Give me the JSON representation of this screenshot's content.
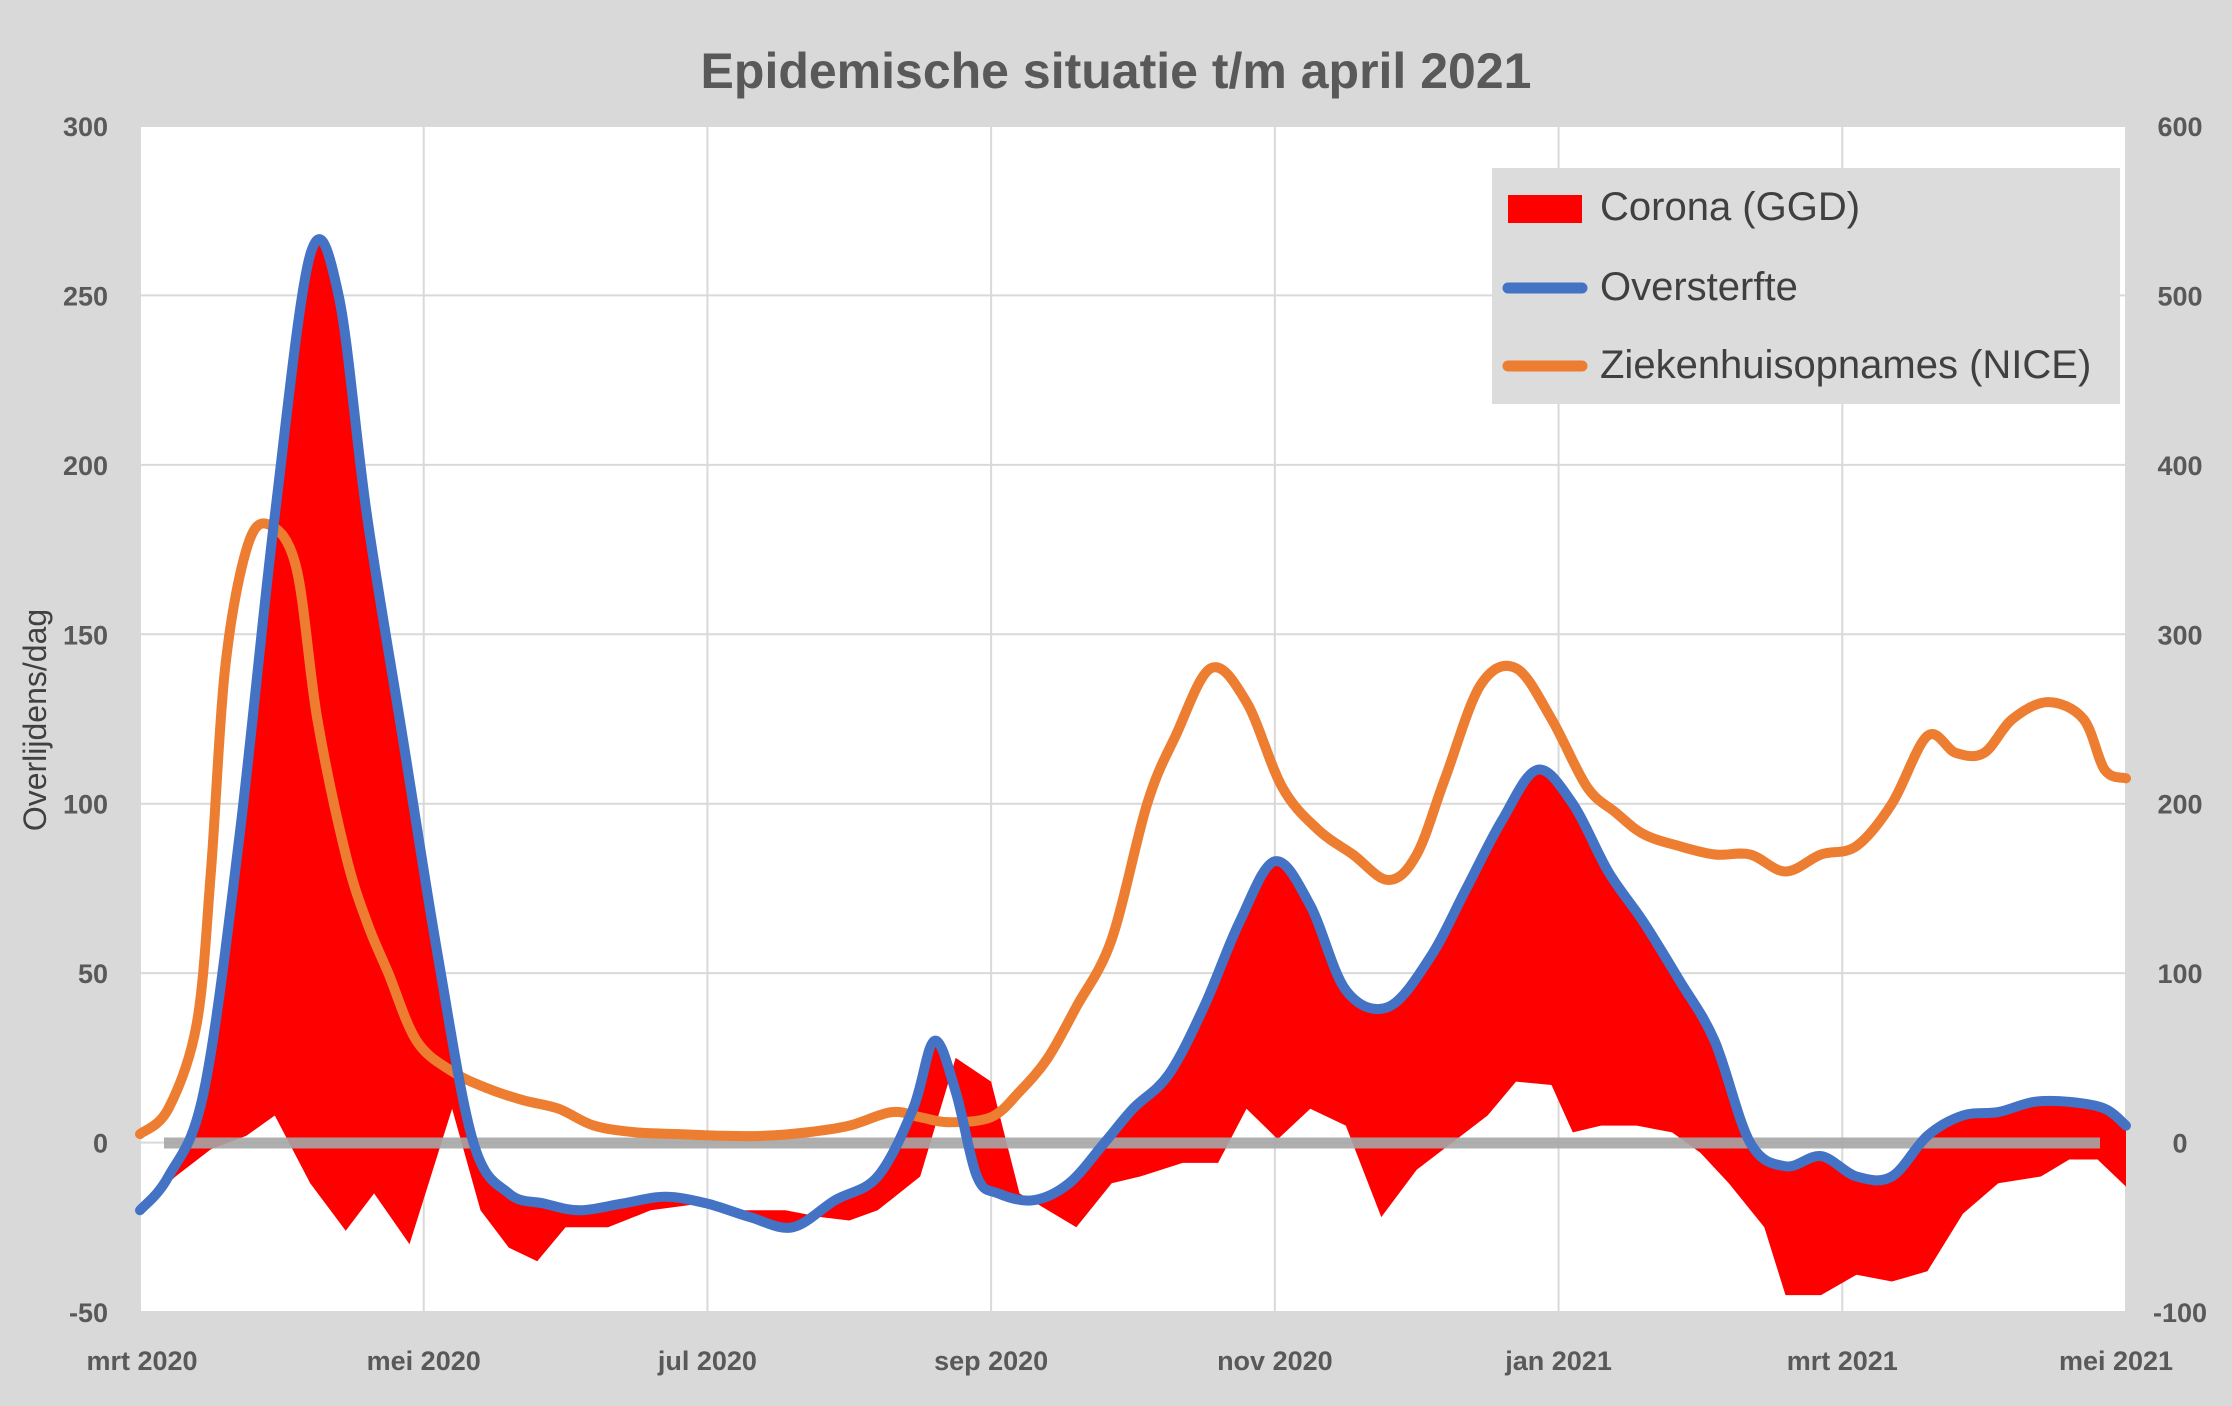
{
  "chart_data": {
    "type": "line",
    "title": "Epidemische situatie t/m april 2021",
    "ylabel": "Overlijdens/dag",
    "y2label": "",
    "ylim": [
      -50,
      300
    ],
    "y2lim": [
      -100,
      600
    ],
    "xlim": [
      0,
      14
    ],
    "y_ticks": [
      "300",
      "250",
      "200",
      "150",
      "100",
      "50",
      "0",
      "-50"
    ],
    "y2_ticks": [
      "600",
      "500",
      "400",
      "300",
      "200",
      "100",
      "0",
      "-100"
    ],
    "x_ticks": [
      "mrt 2020",
      "mei 2020",
      "jul 2020",
      "sep 2020",
      "nov 2020",
      "jan 2021",
      "mrt 2021",
      "mei 2021"
    ],
    "colors": {
      "corona": "#ff0000",
      "oversterfte": "#4472c4",
      "nice": "#ed7d31",
      "zero": "#a6a6a6"
    },
    "legend": {
      "position": "top-right",
      "entries": [
        {
          "name": "Corona (GGD)",
          "kind": "area",
          "color": "#ff0000"
        },
        {
          "name": "Oversterfte",
          "kind": "line",
          "color": "#4472c4"
        },
        {
          "name": "Ziekenhuisopnames (NICE)",
          "kind": "line",
          "color": "#ed7d31"
        }
      ]
    },
    "series": [
      {
        "name": "Oversterfte",
        "axis": "left",
        "x": [
          0,
          0.2,
          0.45,
          0.7,
          0.95,
          1.2,
          1.4,
          1.6,
          1.85,
          2.1,
          2.35,
          2.6,
          2.85,
          3.1,
          3.4,
          3.7,
          4.0,
          4.3,
          4.6,
          4.9,
          5.2,
          5.45,
          5.6,
          5.75,
          5.9,
          6.05,
          6.3,
          6.55,
          6.8,
          7.0,
          7.25,
          7.5,
          7.75,
          8.0,
          8.25,
          8.5,
          8.8,
          9.1,
          9.35,
          9.6,
          9.85,
          10.1,
          10.35,
          10.6,
          10.85,
          11.1,
          11.35,
          11.6,
          11.85,
          12.1,
          12.35,
          12.6,
          12.85,
          13.1,
          13.35,
          13.6,
          13.85,
          14
        ],
        "values": [
          -20,
          -10,
          15,
          90,
          185,
          262,
          250,
          185,
          120,
          55,
          0,
          -15,
          -18,
          -20,
          -18,
          -16,
          -18,
          -22,
          -25,
          -17,
          -10,
          10,
          30,
          15,
          -10,
          -15,
          -17,
          -12,
          0,
          10,
          20,
          40,
          65,
          83,
          70,
          45,
          40,
          55,
          75,
          95,
          110,
          100,
          80,
          65,
          48,
          30,
          0,
          -7,
          -4,
          -10,
          -10,
          2,
          8,
          9,
          12,
          12,
          10,
          5
        ]
      },
      {
        "name": "Ziekenhuisopnames (NICE)",
        "axis": "right",
        "x": [
          0,
          0.2,
          0.4,
          0.5,
          0.6,
          0.75,
          0.9,
          1.1,
          1.25,
          1.45,
          1.6,
          1.75,
          1.95,
          2.2,
          2.45,
          2.7,
          2.95,
          3.2,
          3.5,
          3.8,
          4.1,
          4.4,
          4.7,
          5.0,
          5.3,
          5.5,
          5.7,
          6.0,
          6.2,
          6.4,
          6.6,
          6.85,
          7.1,
          7.3,
          7.55,
          7.8,
          8.05,
          8.3,
          8.55,
          8.8,
          9.0,
          9.2,
          9.45,
          9.7,
          9.95,
          10.2,
          10.4,
          10.6,
          10.85,
          11.1,
          11.35,
          11.6,
          11.85,
          12.1,
          12.35,
          12.6,
          12.8,
          13.0,
          13.2,
          13.45,
          13.7,
          13.85,
          14
        ],
        "values": [
          5,
          20,
          70,
          160,
          280,
          350,
          365,
          340,
          250,
          170,
          130,
          100,
          60,
          42,
          32,
          25,
          20,
          10,
          6,
          5,
          4,
          4,
          6,
          10,
          18,
          15,
          12,
          15,
          30,
          50,
          80,
          120,
          200,
          240,
          280,
          260,
          210,
          185,
          170,
          155,
          170,
          215,
          270,
          280,
          250,
          210,
          195,
          182,
          175,
          170,
          170,
          160,
          170,
          175,
          200,
          240,
          230,
          230,
          250,
          260,
          250,
          220,
          215
        ]
      },
      {
        "name": "Corona (GGD)",
        "axis": "left",
        "area_between": "Oversterfte",
        "x": [
          0,
          0.25,
          0.5,
          0.75,
          0.95,
          1.2,
          1.45,
          1.65,
          1.9,
          2.05,
          2.2,
          2.4,
          2.6,
          2.8,
          3.0,
          3.3,
          3.6,
          3.95,
          4.25,
          4.55,
          4.8,
          5.0,
          5.2,
          5.5,
          5.75,
          6.0,
          6.2,
          6.4,
          6.6,
          6.85,
          7.05,
          7.35,
          7.6,
          7.8,
          8.02,
          8.25,
          8.5,
          8.75,
          9.0,
          9.25,
          9.5,
          9.7,
          9.95,
          10.1,
          10.3,
          10.55,
          10.8,
          11.0,
          11.2,
          11.45,
          11.6,
          11.85,
          12.1,
          12.35,
          12.6,
          12.85,
          13.1,
          13.4,
          13.6,
          13.8,
          14
        ],
        "values": [
          -20,
          -10,
          -2,
          2,
          8,
          -12,
          -26,
          -15,
          -30,
          -10,
          10,
          -20,
          -31,
          -35,
          -25,
          -25,
          -20,
          -18,
          -20,
          -20,
          -22,
          -23,
          -20,
          -10,
          25,
          18,
          -15,
          -20,
          -25,
          -12,
          -10,
          -6,
          -6,
          10,
          1,
          10,
          5,
          -22,
          -8,
          0,
          8,
          18,
          17,
          3,
          5,
          5,
          3,
          -3,
          -12,
          -25,
          -45,
          -45,
          -39,
          -41,
          -38,
          -21,
          -12,
          -10,
          -5,
          -5,
          -13
        ]
      }
    ]
  }
}
